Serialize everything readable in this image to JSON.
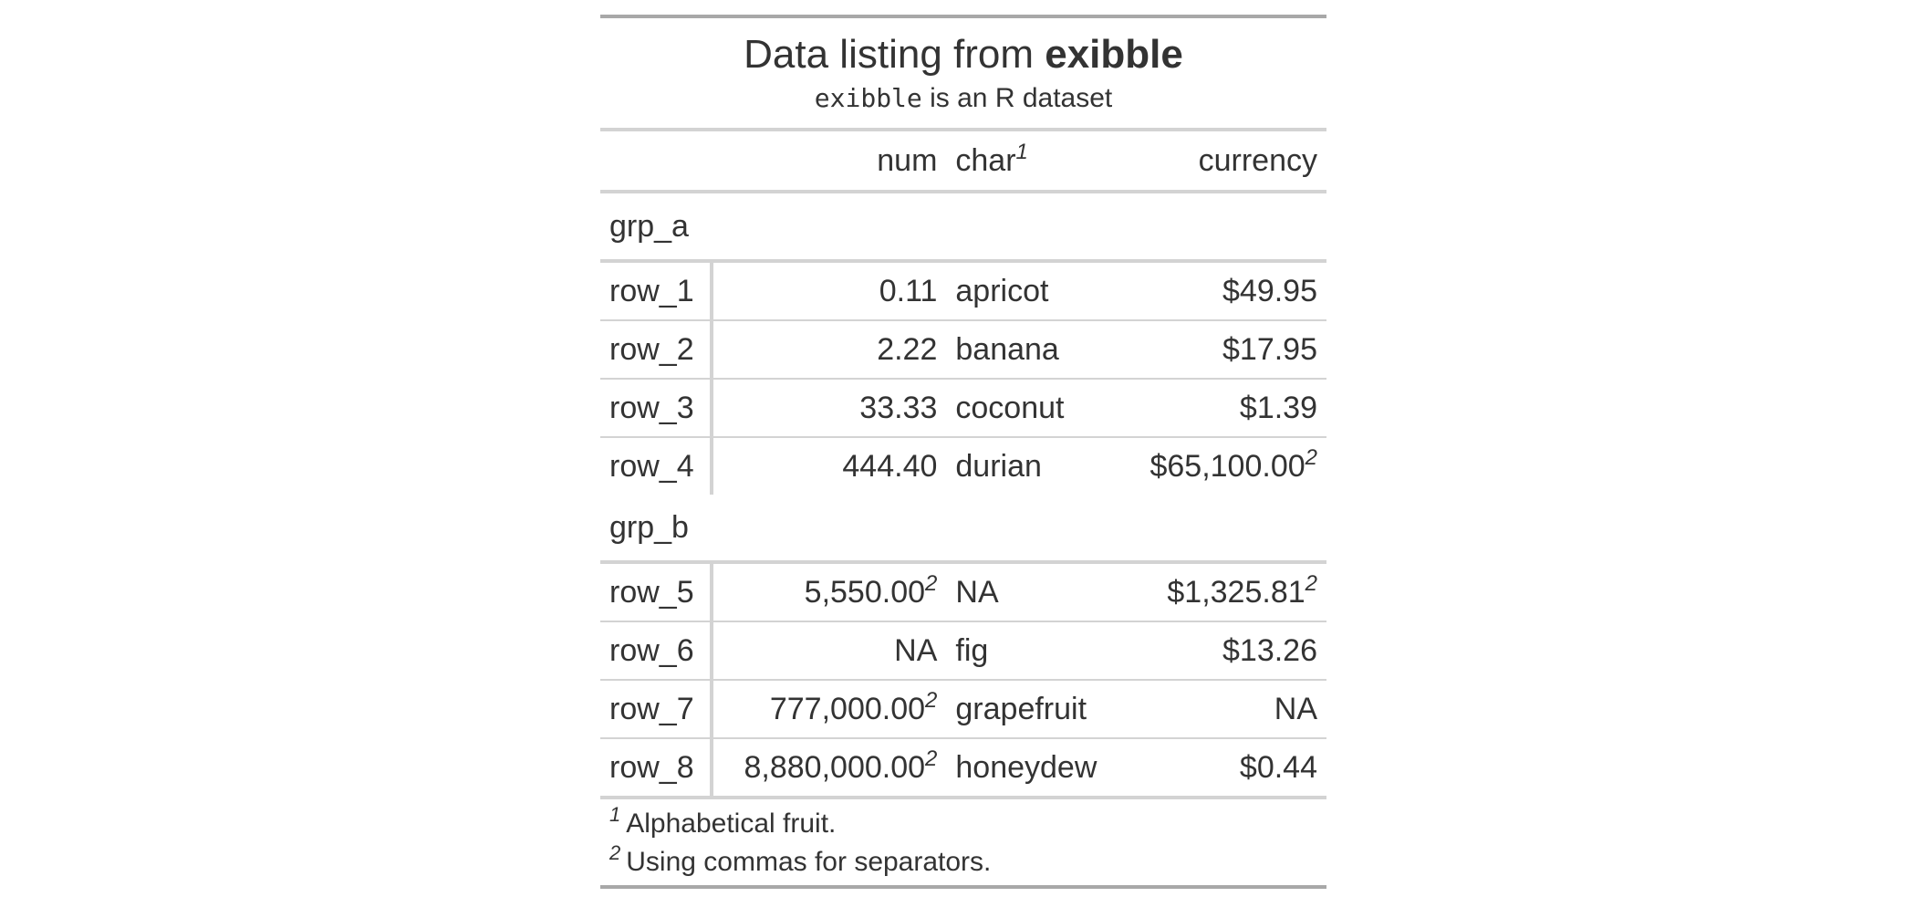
{
  "title": {
    "prefix": "Data listing from ",
    "bold": "exibble"
  },
  "subtitle": {
    "code": "exibble",
    "rest": " is an R dataset"
  },
  "columns": {
    "stub": "",
    "num": "num",
    "char": "char",
    "char_mark": "1",
    "currency": "currency"
  },
  "groups": [
    {
      "label": "grp_a",
      "rows": [
        {
          "stub": "row_1",
          "num": "0.11",
          "num_mark": "",
          "char": "apricot",
          "currency": "$49.95",
          "currency_mark": ""
        },
        {
          "stub": "row_2",
          "num": "2.22",
          "num_mark": "",
          "char": "banana",
          "currency": "$17.95",
          "currency_mark": ""
        },
        {
          "stub": "row_3",
          "num": "33.33",
          "num_mark": "",
          "char": "coconut",
          "currency": "$1.39",
          "currency_mark": ""
        },
        {
          "stub": "row_4",
          "num": "444.40",
          "num_mark": "",
          "char": "durian",
          "currency": "$65,100.00",
          "currency_mark": "2"
        }
      ]
    },
    {
      "label": "grp_b",
      "rows": [
        {
          "stub": "row_5",
          "num": "5,550.00",
          "num_mark": "2",
          "char": "NA",
          "currency": "$1,325.81",
          "currency_mark": "2"
        },
        {
          "stub": "row_6",
          "num": "NA",
          "num_mark": "",
          "char": "fig",
          "currency": "$13.26",
          "currency_mark": ""
        },
        {
          "stub": "row_7",
          "num": "777,000.00",
          "num_mark": "2",
          "char": "grapefruit",
          "currency": "NA",
          "currency_mark": ""
        },
        {
          "stub": "row_8",
          "num": "8,880,000.00",
          "num_mark": "2",
          "char": "honeydew",
          "currency": "$0.44",
          "currency_mark": ""
        }
      ]
    }
  ],
  "footnotes": [
    {
      "mark": "1",
      "text": "Alphabetical fruit."
    },
    {
      "mark": "2",
      "text": "Using commas for separators."
    }
  ],
  "colors": {
    "text": "#333333",
    "outer_rule": "#a8a8a8",
    "inner_rule": "#d3d3d3"
  }
}
